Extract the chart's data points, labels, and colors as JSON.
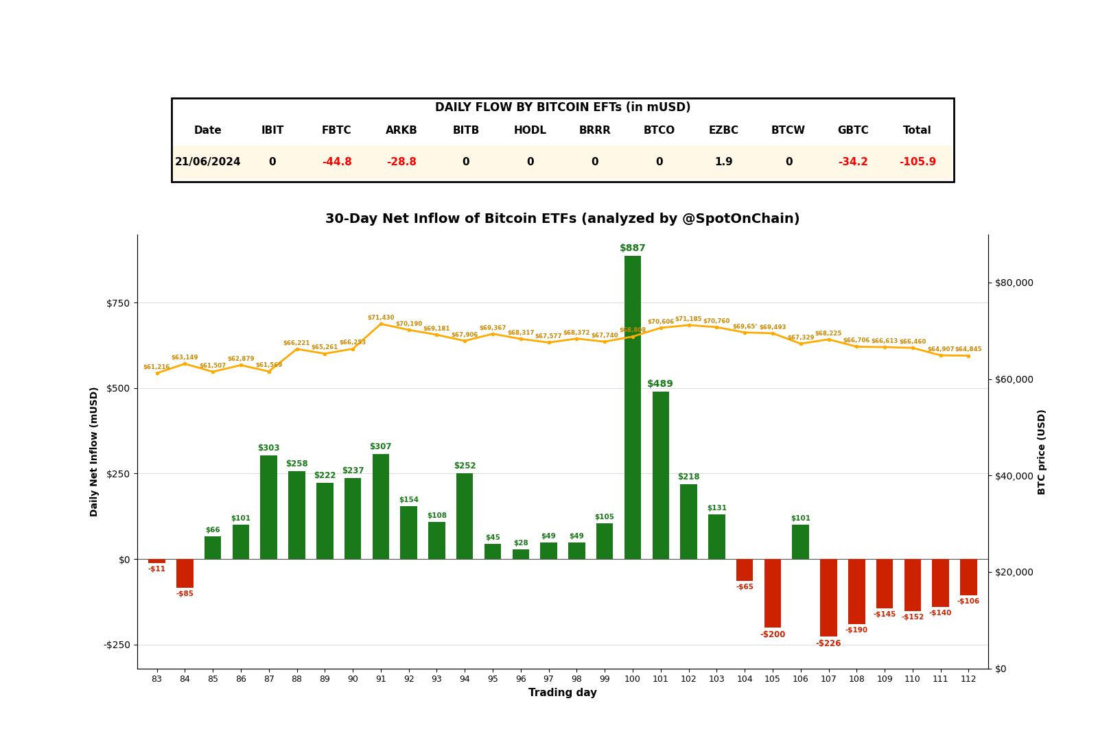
{
  "table_title": "DAILY FLOW BY BITCOIN EFTs (in mUSD)",
  "table_headers": [
    "Date",
    "IBIT",
    "FBTC",
    "ARKB",
    "BITB",
    "HODL",
    "BRRR",
    "BTCO",
    "EZBC",
    "BTCW",
    "GBTC",
    "Total"
  ],
  "table_row": [
    "21/06/2024",
    "0",
    "-44.8",
    "-28.8",
    "0",
    "0",
    "0",
    "0",
    "1.9",
    "0",
    "-34.2",
    "-105.9"
  ],
  "table_row_colors": [
    "black",
    "black",
    "red",
    "red",
    "black",
    "black",
    "black",
    "black",
    "black",
    "black",
    "red",
    "red"
  ],
  "chart_title": "30-Day Net Inflow of Bitcoin ETFs (analyzed by @SpotOnChain)",
  "trading_days": [
    83,
    84,
    85,
    86,
    87,
    88,
    89,
    90,
    91,
    92,
    93,
    94,
    95,
    96,
    97,
    98,
    99,
    100,
    101,
    102,
    103,
    104,
    105,
    106,
    107,
    108,
    109,
    110,
    111,
    112
  ],
  "inflow_values": [
    -11,
    -85,
    66,
    101,
    303,
    258,
    222,
    237,
    307,
    154,
    108,
    252,
    45,
    28,
    49,
    49,
    105,
    887,
    489,
    218,
    131,
    -65,
    -200,
    101,
    -226,
    -190,
    -145,
    -152,
    -140,
    -106
  ],
  "inflow_labels": [
    "-$11",
    "-$85",
    "$66",
    "$101",
    "$303",
    "$258",
    "$222",
    "$237",
    "$307",
    "$154",
    "$108",
    "$252",
    "$45",
    "$28",
    "$49",
    "$49",
    "$105",
    "$887",
    "$489",
    "$218",
    "$131",
    "-$65",
    "-$200",
    "$101",
    "-$226",
    "-$190",
    "-$145",
    "-$152",
    "-$140",
    "-$106"
  ],
  "btc_prices": [
    61216,
    63149,
    61507,
    62879,
    61569,
    66221,
    65261,
    66253,
    71430,
    70190,
    69181,
    67906,
    69367,
    68317,
    67577,
    68372,
    67740,
    68808,
    70606,
    71185,
    70760,
    69651,
    69493,
    67329,
    68225,
    66706,
    66613,
    66460,
    64907,
    64845
  ],
  "btc_price_labels": [
    "$61,216",
    "$63,149",
    "$61,507",
    "$62,879",
    "$61,569",
    "$66,221",
    "$65,261",
    "$66,253",
    "$71,430",
    "$70,190",
    "$69,181",
    "$67,906",
    "$69,367",
    "$68,317",
    "$67,577",
    "$68,372",
    "$67,740",
    "$68,808",
    "$70,606",
    "$71,185",
    "$70,760",
    "$69,65’",
    "$69,493",
    "$67,329",
    "$68,225",
    "$66,706",
    "$66,613",
    "$66,460",
    "$64,907",
    "$64,845"
  ],
  "bar_color_positive": "#1a7a1a",
  "bar_color_negative": "#cc2200",
  "line_color": "#ffaa00",
  "label_color_positive": "#1a7a1a",
  "label_color_negative": "#cc2200",
  "btc_label_color": "#cc8800",
  "background_color": "#ffffff",
  "table_bg_color": "#fff8e7",
  "ylabel_left": "Daily Net Inflow (mUSD)",
  "ylabel_right": "BTC price (USD)",
  "xlabel": "Trading day",
  "ylim_left": [
    -320,
    950
  ],
  "ylim_right": [
    0,
    90000
  ],
  "yticks_left": [
    -250,
    0,
    250,
    500,
    750
  ],
  "ytick_labels_left": [
    "-$250",
    "$0",
    "$250",
    "$500",
    "$750"
  ],
  "yticks_right": [
    0,
    20000,
    40000,
    60000,
    80000
  ],
  "ytick_labels_right": [
    "$0",
    "$20,000",
    "$40,000",
    "$60,000",
    "$80,000"
  ]
}
